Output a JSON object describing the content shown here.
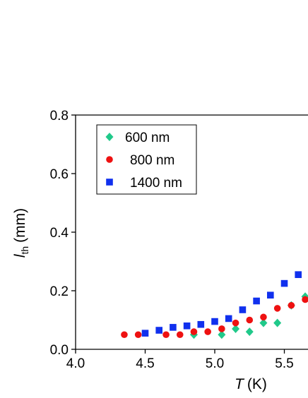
{
  "chart_data": {
    "type": "scatter",
    "x_label": {
      "symbol": "T",
      "unit": "(K)"
    },
    "y_label": {
      "symbol": "l",
      "subscript": "th",
      "unit": "(mm)"
    },
    "xlim": [
      4.0,
      5.67
    ],
    "xticks": [
      {
        "value": 4.0,
        "label": "4.0"
      },
      4.5,
      {
        "value": 5.0,
        "label": "5.0"
      },
      5.5
    ],
    "ylim": [
      0.0,
      0.8
    ],
    "yticks": [
      {
        "value": 0.0,
        "label": "0.0"
      },
      0.2,
      0.4,
      0.6,
      0.8
    ],
    "legend": "upper left",
    "series": [
      {
        "name": "600 nm",
        "color": "#20c98a",
        "marker": "diamond",
        "x": [
          4.85,
          5.05,
          5.15,
          5.25,
          5.35,
          5.45,
          5.55,
          5.65
        ],
        "values": [
          0.05,
          0.05,
          0.07,
          0.06,
          0.09,
          0.09,
          0.15,
          0.18
        ]
      },
      {
        "name": "800 nm",
        "color": "#ee1111",
        "marker": "circle",
        "x": [
          4.35,
          4.45,
          4.65,
          4.75,
          4.85,
          4.95,
          5.05,
          5.15,
          5.25,
          5.35,
          5.45,
          5.55,
          5.65
        ],
        "values": [
          0.05,
          0.05,
          0.05,
          0.05,
          0.06,
          0.06,
          0.07,
          0.09,
          0.1,
          0.11,
          0.14,
          0.15,
          0.17
        ]
      },
      {
        "name": "1400 nm",
        "color": "#1030ee",
        "marker": "square",
        "x": [
          4.5,
          4.6,
          4.7,
          4.8,
          4.9,
          5.0,
          5.1,
          5.2,
          5.3,
          5.4,
          5.5,
          5.6
        ],
        "values": [
          0.055,
          0.065,
          0.075,
          0.08,
          0.085,
          0.095,
          0.105,
          0.135,
          0.165,
          0.185,
          0.225,
          0.255
        ]
      }
    ]
  }
}
